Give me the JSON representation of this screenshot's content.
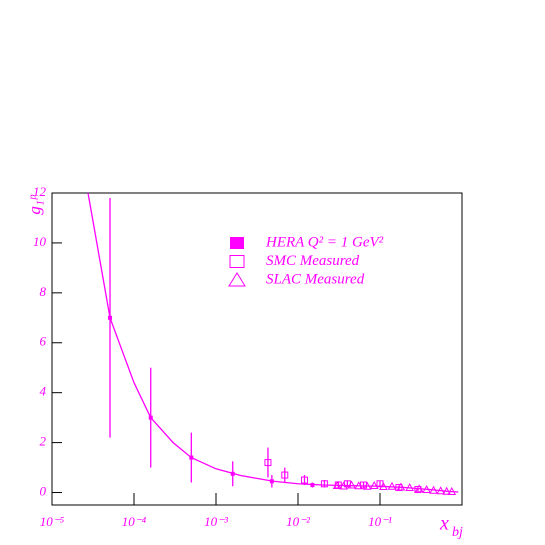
{
  "chart_data": {
    "type": "scatter",
    "x_label": "x",
    "x_label_sub": "bj",
    "y_label": "g₁ᵖ",
    "xlog": true,
    "xlim": [
      1e-05,
      1
    ],
    "ylim": [
      -0.5,
      12
    ],
    "xticks": [
      {
        "value": 1e-05,
        "label": "10⁻⁵"
      },
      {
        "value": 0.0001,
        "label": "10⁻⁴"
      },
      {
        "value": 0.001,
        "label": "10⁻³"
      },
      {
        "value": 0.01,
        "label": "10⁻²"
      },
      {
        "value": 0.1,
        "label": "10⁻¹"
      }
    ],
    "yticks": [
      0,
      2,
      4,
      6,
      8,
      10,
      12
    ],
    "series": [
      {
        "name": "HERA Q² = 1 GeV²",
        "marker": "filled-square",
        "color": "#ff00ff",
        "x": [
          5.1e-05,
          0.00016,
          0.0005,
          0.0016,
          0.0048,
          0.015
        ],
        "values": [
          7,
          3,
          1.4,
          0.75,
          0.45,
          0.3
        ],
        "errors": [
          4.8,
          2,
          1,
          0.5,
          0.25,
          0.1
        ]
      },
      {
        "name": "SMC Measured",
        "marker": "open-square",
        "color": "#ff00ff",
        "x": [
          0.0043,
          0.0069,
          0.012,
          0.021,
          0.031,
          0.04,
          0.063,
          0.1,
          0.17,
          0.29
        ],
        "values": [
          1.2,
          0.7,
          0.5,
          0.35,
          0.3,
          0.35,
          0.3,
          0.35,
          0.2,
          0.12
        ],
        "errors": [
          0.6,
          0.3,
          0.2,
          0.15,
          0.15,
          0.12,
          0.1,
          0.1,
          0.08,
          0.06
        ]
      },
      {
        "name": "SLAC Measured",
        "marker": "triangle",
        "color": "#ff00ff",
        "x": [
          0.03,
          0.036,
          0.045,
          0.055,
          0.07,
          0.085,
          0.11,
          0.14,
          0.18,
          0.23,
          0.3,
          0.37,
          0.45,
          0.55,
          0.65,
          0.75
        ],
        "values": [
          0.28,
          0.26,
          0.3,
          0.27,
          0.25,
          0.28,
          0.24,
          0.25,
          0.22,
          0.2,
          0.15,
          0.12,
          0.09,
          0.07,
          0.05,
          0.04
        ]
      },
      {
        "marker": "line",
        "color": "#ff00ff",
        "x": [
          2.75e-05,
          5.1e-05,
          0.0001,
          0.00016,
          0.0003,
          0.0005,
          0.001,
          0.002,
          0.005,
          0.01,
          0.02,
          0.05,
          0.1,
          0.2,
          0.4,
          0.7,
          0.9
        ],
        "values": [
          12,
          7,
          4.4,
          3,
          2,
          1.4,
          0.95,
          0.68,
          0.45,
          0.35,
          0.3,
          0.27,
          0.25,
          0.2,
          0.12,
          0.04,
          0.02
        ]
      }
    ],
    "legend": "upper-right"
  }
}
